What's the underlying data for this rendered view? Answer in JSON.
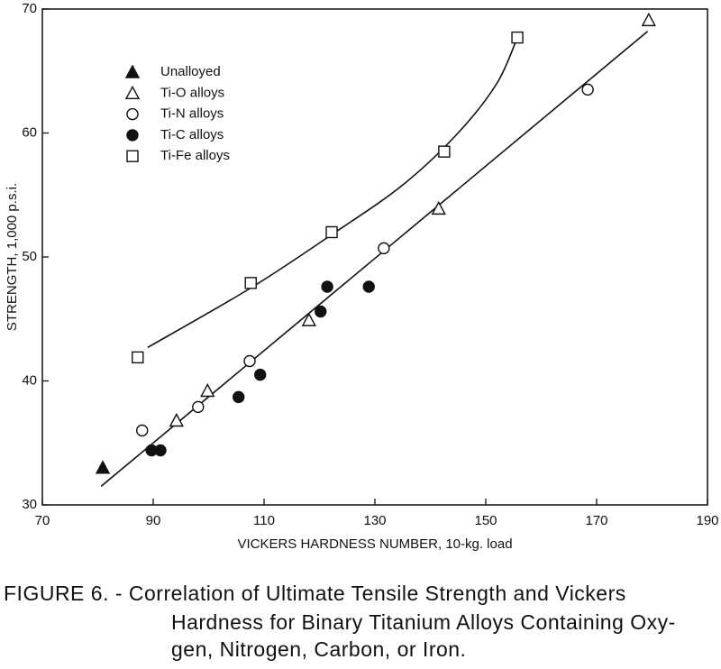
{
  "chart_data": {
    "type": "scatter",
    "xlabel": "VICKERS HARDNESS NUMBER, 10-kg. load",
    "ylabel": "STRENGTH, 1,000 p.s.i.",
    "caption": [
      "FIGURE 6. - Correlation of Ultimate Tensile Strength and Vickers",
      "Hardness for Binary Titanium Alloys Containing Oxy-",
      "gen, Nitrogen, Carbon, or Iron."
    ],
    "xlim": [
      70,
      190
    ],
    "xticks": [
      70,
      90,
      110,
      130,
      150,
      170,
      190
    ],
    "ylim": [
      30,
      70
    ],
    "yticks": [
      30,
      40,
      50,
      60,
      70
    ],
    "series": [
      {
        "name": "Unalloyed",
        "marker": "triangle",
        "filled": true,
        "color": "#111",
        "x": [
          80.9
        ],
        "values": [
          33.0
        ]
      },
      {
        "name": "Ti-O alloys",
        "marker": "triangle",
        "filled": false,
        "color": "#111",
        "x": [
          94.2,
          99.8,
          118.1,
          141.5,
          179.4
        ],
        "values": [
          36.8,
          39.2,
          44.9,
          53.9,
          69.1
        ]
      },
      {
        "name": "Ti-N alloys",
        "marker": "circle",
        "filled": false,
        "color": "#111",
        "x": [
          88.0,
          98.1,
          107.4,
          131.6,
          168.4
        ],
        "values": [
          36.0,
          37.9,
          41.6,
          50.7,
          63.5
        ]
      },
      {
        "name": "Ti-C alloys",
        "marker": "circle",
        "filled": true,
        "color": "#111",
        "x": [
          89.7,
          91.3,
          105.4,
          109.3,
          120.2,
          121.4,
          128.9
        ],
        "values": [
          34.4,
          34.4,
          38.7,
          40.5,
          45.6,
          47.6,
          47.6
        ]
      },
      {
        "name": "Ti-Fe alloys",
        "marker": "square",
        "filled": false,
        "color": "#111",
        "x": [
          87.2,
          107.6,
          122.2,
          142.5,
          155.7
        ],
        "values": [
          41.9,
          47.9,
          52.0,
          58.5,
          67.7
        ]
      }
    ],
    "curves": [
      {
        "x": [
          80.6,
          179.2
        ],
        "values": [
          31.5,
          68.2
        ]
      },
      {
        "x": [
          89.0,
          107.6,
          122.2,
          135.0,
          145.0,
          152.0,
          155.7
        ],
        "values": [
          42.7,
          47.5,
          51.8,
          55.8,
          60.0,
          64.0,
          67.7
        ]
      }
    ]
  }
}
